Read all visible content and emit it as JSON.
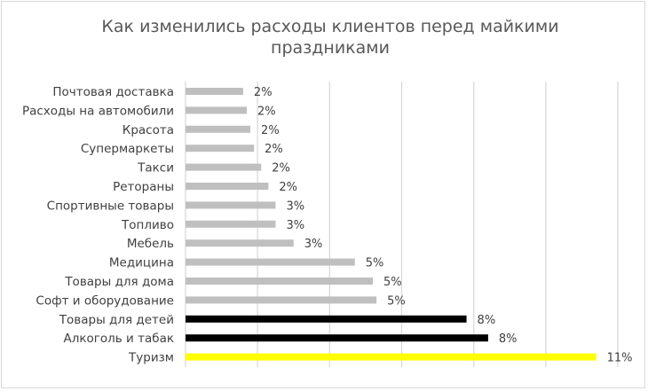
{
  "chart_data": {
    "type": "bar",
    "orientation": "horizontal",
    "title": "Как изменились расходы клиентов перед майкими праздниками",
    "title_lines": [
      "Как изменились расходы клиентов перед майкими",
      "праздниками"
    ],
    "xlabel": "",
    "ylabel": "",
    "xlim": [
      0,
      12
    ],
    "grid": true,
    "grid_step": 2,
    "legend": "none",
    "categories": [
      "Почтовая доставка",
      "Расходы на автомобили",
      "Красота",
      "Супермаркеты",
      "Такси",
      "Ретораны",
      "Спортивные товары",
      "Топливо",
      "Мебель",
      "Медицина",
      "Товары для дома",
      "Софт и оборудование",
      "Товары для детей",
      "Алкоголь и табак",
      "Туризм"
    ],
    "values": [
      1.6,
      1.7,
      1.8,
      1.9,
      2.1,
      2.3,
      2.5,
      2.5,
      3.0,
      4.7,
      5.2,
      5.3,
      7.8,
      8.4,
      11.4
    ],
    "data_labels": [
      "2%",
      "2%",
      "2%",
      "2%",
      "2%",
      "2%",
      "3%",
      "3%",
      "3%",
      "5%",
      "5%",
      "5%",
      "8%",
      "8%",
      "11%"
    ],
    "colors": [
      "#bfbfbf",
      "#bfbfbf",
      "#bfbfbf",
      "#bfbfbf",
      "#bfbfbf",
      "#bfbfbf",
      "#bfbfbf",
      "#bfbfbf",
      "#bfbfbf",
      "#bfbfbf",
      "#bfbfbf",
      "#bfbfbf",
      "#000000",
      "#000000",
      "#ffff00"
    ]
  }
}
